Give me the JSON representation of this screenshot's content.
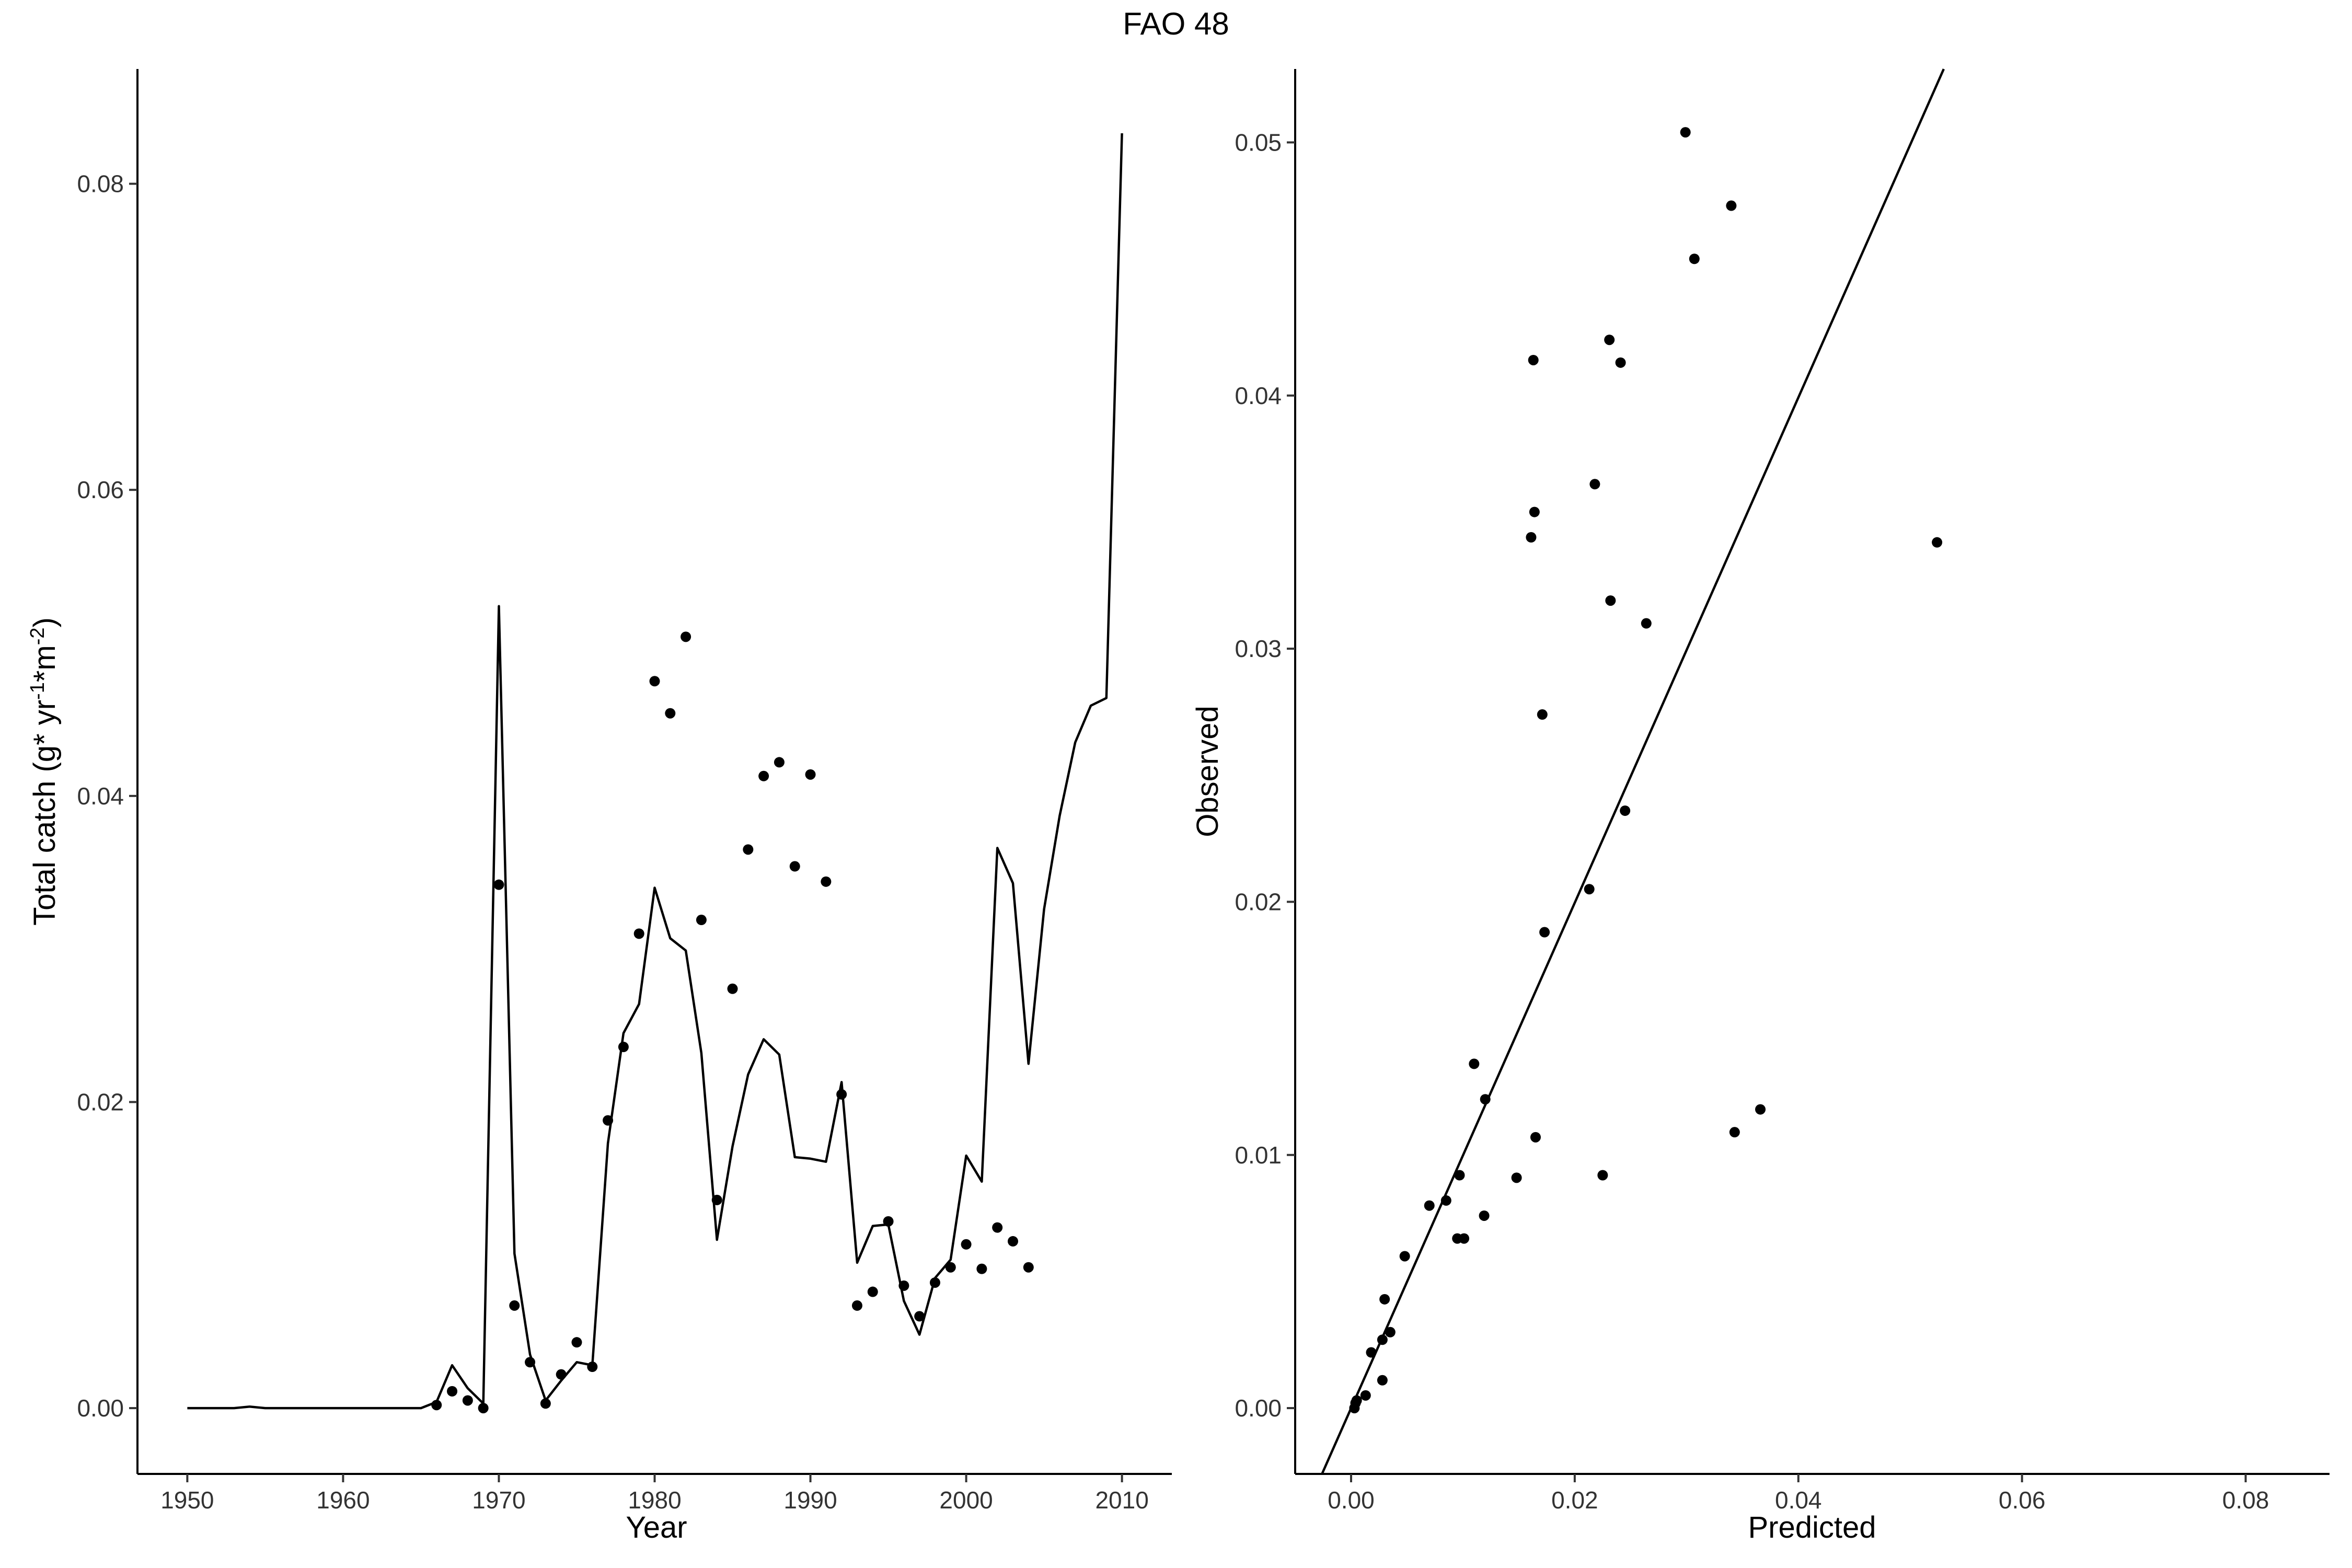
{
  "title": "FAO 48",
  "chart_data": [
    {
      "type": "line",
      "xlabel": "Year",
      "ylabel": {
        "text": "Total catch (g* yr",
        "sup1": "-1",
        "mid": "*m",
        "sup2": "-2",
        "end": ")"
      },
      "xlim": [
        1946.8,
        2013.2
      ],
      "ylim": [
        -0.0043,
        0.0875
      ],
      "x_ticks": [
        1950,
        1960,
        1970,
        1980,
        1990,
        2000,
        2010
      ],
      "x_tick_labels": [
        "1950",
        "1960",
        "1970",
        "1980",
        "1990",
        "2000",
        "2010"
      ],
      "y_ticks": [
        0,
        0.02,
        0.04,
        0.06,
        0.08
      ],
      "y_tick_labels": [
        "0.00",
        "0.02",
        "0.04",
        "0.06",
        "0.08"
      ],
      "grid": false,
      "legend": "none",
      "series": [
        {
          "type": "line",
          "x": [
            1950,
            1951,
            1952,
            1953,
            1954,
            1955,
            1956,
            1957,
            1958,
            1959,
            1960,
            1961,
            1962,
            1963,
            1964,
            1965,
            1966,
            1967,
            1968,
            1969,
            1970,
            1971,
            1972,
            1973,
            1974,
            1975,
            1976,
            1977,
            1978,
            1979,
            1980,
            1981,
            1982,
            1983,
            1984,
            1985,
            1986,
            1987,
            1988,
            1989,
            1990,
            1991,
            1992,
            1993,
            1994,
            1995,
            1996,
            1997,
            1998,
            1999,
            2000,
            2001,
            2002,
            2003,
            2004,
            2005,
            2006,
            2007,
            2008,
            2009,
            2010
          ],
          "y": [
            0,
            0,
            0,
            0,
            0.0001,
            0,
            0,
            0,
            0,
            0,
            0,
            0,
            0,
            0,
            0,
            0,
            0.0004,
            0.0028,
            0.0013,
            0.0003,
            0.0524,
            0.0101,
            0.0035,
            0.0005,
            0.0018,
            0.003,
            0.0028,
            0.0173,
            0.0245,
            0.0264,
            0.034,
            0.0307,
            0.0299,
            0.0232,
            0.011,
            0.0171,
            0.0218,
            0.0241,
            0.0231,
            0.0164,
            0.0163,
            0.0161,
            0.0213,
            0.0095,
            0.0119,
            0.012,
            0.007,
            0.0048,
            0.0085,
            0.0097,
            0.0165,
            0.0148,
            0.0366,
            0.0343,
            0.0225,
            0.0326,
            0.0387,
            0.0435,
            0.0459,
            0.0464,
            0.0833
          ]
        },
        {
          "type": "scatter",
          "x": [
            1966,
            1967,
            1968,
            1969,
            1970,
            1971,
            1972,
            1973,
            1974,
            1975,
            1976,
            1977,
            1978,
            1979,
            1980,
            1981,
            1982,
            1983,
            1984,
            1985,
            1986,
            1987,
            1988,
            1989,
            1990,
            1991,
            1992,
            1993,
            1994,
            1995,
            1996,
            1997,
            1998,
            1999,
            2000,
            2001,
            2002,
            2003,
            2004
          ],
          "y": [
            0.0002,
            0.0011,
            0.0005,
            0,
            0.0342,
            0.0067,
            0.003,
            0.0003,
            0.0022,
            0.0043,
            0.0027,
            0.0188,
            0.0236,
            0.031,
            0.0475,
            0.0454,
            0.0504,
            0.0319,
            0.0136,
            0.0274,
            0.0365,
            0.0413,
            0.0422,
            0.0354,
            0.0414,
            0.0344,
            0.0205,
            0.0067,
            0.0076,
            0.0122,
            0.008,
            0.006,
            0.0082,
            0.0092,
            0.0107,
            0.0091,
            0.0118,
            0.0109,
            0.0092
          ]
        }
      ]
    },
    {
      "type": "scatter",
      "xlabel": "Predicted",
      "ylabel": "Observed",
      "xlim": [
        -0.005,
        0.0875
      ],
      "ylim": [
        -0.0026,
        0.0529
      ],
      "x_ticks": [
        0,
        0.02,
        0.04,
        0.06,
        0.08
      ],
      "x_tick_labels": [
        "0.00",
        "0.02",
        "0.04",
        "0.06",
        "0.08"
      ],
      "y_ticks": [
        0,
        0.01,
        0.02,
        0.03,
        0.04,
        0.05
      ],
      "y_tick_labels": [
        "0.00",
        "0.01",
        "0.02",
        "0.03",
        "0.04",
        "0.05"
      ],
      "grid": false,
      "legend": "none",
      "reference_line": {
        "type": "fit",
        "x": [
          -0.0026,
          0.053
        ],
        "y": [
          -0.0026,
          0.0529
        ]
      },
      "series": [
        {
          "type": "scatter",
          "x": [
            0.0004,
            0.0028,
            0.0013,
            0.0003,
            0.0524,
            0.0101,
            0.0035,
            0.0005,
            0.0018,
            0.003,
            0.0028,
            0.0173,
            0.0245,
            0.0264,
            0.034,
            0.0307,
            0.0299,
            0.0232,
            0.011,
            0.0171,
            0.0218,
            0.0241,
            0.0231,
            0.0164,
            0.0163,
            0.0161,
            0.0213,
            0.0095,
            0.0119,
            0.012,
            0.007,
            0.0048,
            0.0085,
            0.0097,
            0.0165,
            0.0148,
            0.0366,
            0.0343,
            0.0225
          ],
          "y": [
            0.0002,
            0.0011,
            0.0005,
            0,
            0.0342,
            0.0067,
            0.003,
            0.0003,
            0.0022,
            0.0043,
            0.0027,
            0.0188,
            0.0236,
            0.031,
            0.0475,
            0.0454,
            0.0504,
            0.0319,
            0.0136,
            0.0274,
            0.0365,
            0.0413,
            0.0422,
            0.0354,
            0.0414,
            0.0344,
            0.0205,
            0.0067,
            0.0076,
            0.0122,
            0.008,
            0.006,
            0.0082,
            0.0092,
            0.0107,
            0.0091,
            0.0118,
            0.0109,
            0.0092
          ]
        }
      ]
    }
  ]
}
